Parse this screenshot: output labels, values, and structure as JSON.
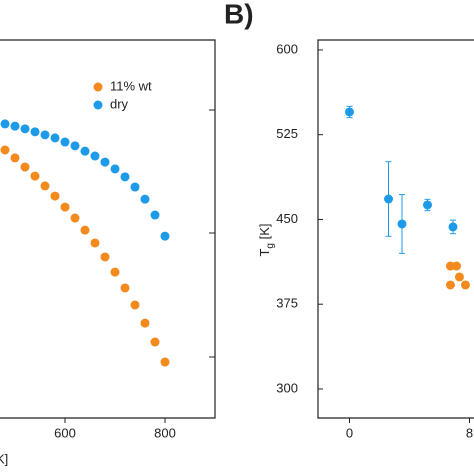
{
  "chart_data": [
    {
      "type": "scatter",
      "x_label": "K]",
      "xlim": [
        470,
        900
      ],
      "xticks": [
        600,
        800
      ],
      "ylim": [
        0,
        100
      ],
      "legend": "upper right",
      "series": [
        {
          "name": "11% wt",
          "color": "#f28a1e",
          "x": [
            480,
            500,
            520,
            540,
            560,
            580,
            600,
            620,
            640,
            660,
            680,
            700,
            720,
            740,
            760,
            780,
            800
          ],
          "values": [
            70.9,
            68.8,
            66.4,
            64.0,
            61.4,
            58.7,
            55.8,
            52.9,
            49.7,
            46.3,
            42.6,
            38.6,
            34.4,
            29.9,
            25.1,
            20.1,
            14.8
          ]
        },
        {
          "name": "dry",
          "color": "#1e9be8",
          "x": [
            480,
            500,
            520,
            540,
            560,
            580,
            600,
            620,
            640,
            660,
            680,
            700,
            720,
            740,
            760,
            780,
            800
          ],
          "values": [
            77.8,
            77.2,
            76.5,
            75.7,
            74.9,
            74.1,
            73.0,
            72.0,
            70.6,
            69.3,
            67.7,
            65.9,
            63.8,
            61.1,
            57.9,
            53.7,
            48.1
          ]
        }
      ]
    },
    {
      "type": "scatter",
      "title": "B)",
      "y_label": [
        "T",
        "g",
        " [K]"
      ],
      "xlim": [
        -2.1,
        8.3
      ],
      "xticks": [
        0,
        8
      ],
      "ylim": [
        274.3,
        608.8
      ],
      "yticks": [
        300,
        375,
        450,
        525,
        600
      ],
      "series": [
        {
          "color": "#1e9be8",
          "x": [
            0,
            2.6,
            3.5,
            5.2,
            6.9
          ],
          "values": [
            545.1,
            468.1,
            446.0,
            462.8,
            443.4
          ],
          "errors": [
            5,
            33,
            26,
            5,
            6
          ]
        },
        {
          "color": "#f28a1e",
          "x": [
            6.73,
            7.13,
            6.73,
            7.33,
            7.73
          ],
          "values": [
            408.8,
            408.8,
            392.0,
            399.1,
            392.0
          ]
        }
      ]
    }
  ]
}
